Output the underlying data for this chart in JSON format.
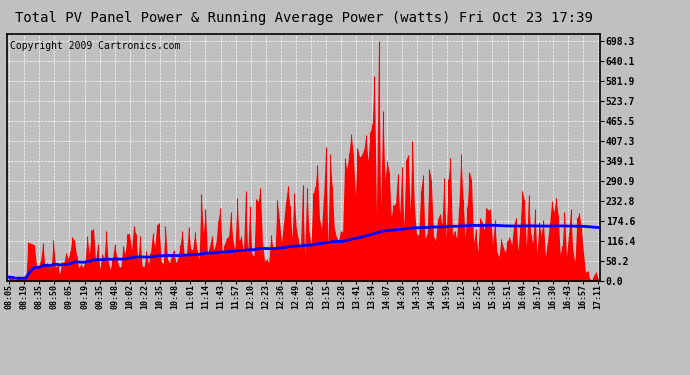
{
  "title": "Total PV Panel Power & Running Average Power (watts) Fri Oct 23 17:39",
  "copyright": "Copyright 2009 Cartronics.com",
  "y_ticks": [
    0.0,
    58.2,
    116.4,
    174.6,
    232.8,
    290.9,
    349.1,
    407.3,
    465.5,
    523.7,
    581.9,
    640.1,
    698.3
  ],
  "y_max": 720,
  "y_min": 0,
  "bar_color": "#FF0000",
  "line_color": "#0000FF",
  "background_color": "#C0C0C0",
  "plot_background": "#C0C0C0",
  "title_fontsize": 10,
  "copyright_fontsize": 7,
  "x_labels": [
    "08:05",
    "08:19",
    "08:35",
    "08:50",
    "09:05",
    "09:19",
    "09:35",
    "09:48",
    "10:02",
    "10:22",
    "10:35",
    "10:48",
    "11:01",
    "11:14",
    "11:43",
    "11:57",
    "12:10",
    "12:23",
    "12:36",
    "12:49",
    "13:02",
    "13:15",
    "13:28",
    "13:41",
    "13:54",
    "14:07",
    "14:20",
    "14:33",
    "14:46",
    "14:59",
    "15:12",
    "15:25",
    "15:38",
    "15:51",
    "16:04",
    "16:17",
    "16:30",
    "16:43",
    "16:57",
    "17:11"
  ]
}
